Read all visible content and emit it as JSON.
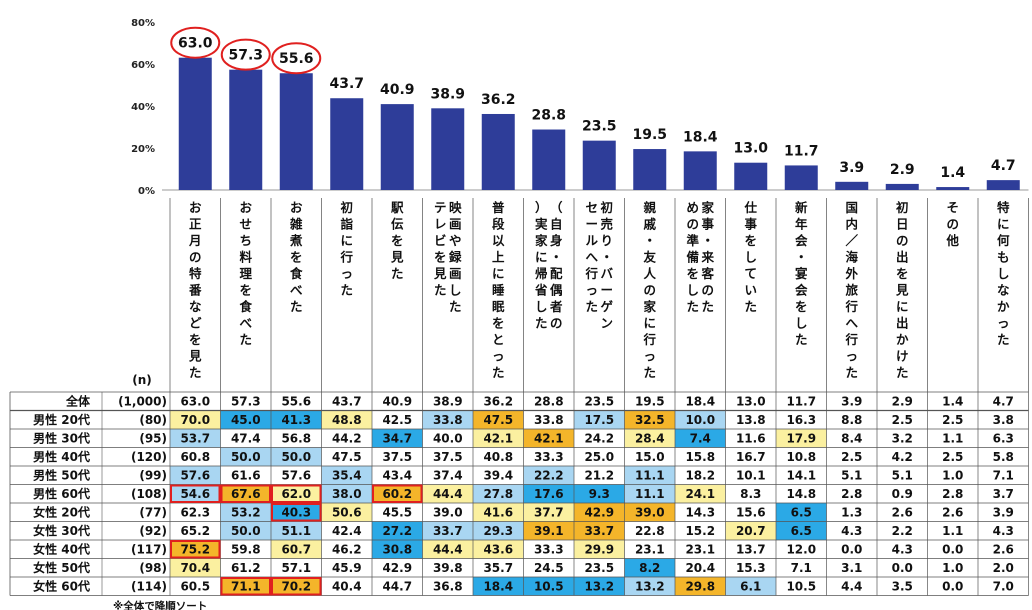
{
  "chart_data": {
    "type": "bar",
    "title": "",
    "ylim": [
      0,
      80
    ],
    "yticks": [
      "0%",
      "20%",
      "40%",
      "60%",
      "80%"
    ],
    "bar_color": "#2e3d99",
    "highlight_color": "#e0201f",
    "highlighted_categories": [
      0,
      1,
      2
    ],
    "categories": [
      "お正月の特番などを見た",
      "おせち料理を食べた",
      "お雑煮を食べた",
      "初詣に行った",
      "駅伝を見た",
      "映画や録画したテレビを見た",
      "普段以上に睡眠をとった",
      "（自身・配偶者の）実家に帰省した",
      "初売り・バーゲンセールへ行った",
      "親戚・友人の家に行った",
      "家事・来客のための準備をした",
      "仕事をしていた",
      "新年会・宴会をした",
      "国内／海外旅行へ行った",
      "初日の出を見に出かけた",
      "その他",
      "特に何もしなかった"
    ],
    "values": [
      63.0,
      57.3,
      55.6,
      43.7,
      40.9,
      38.9,
      36.2,
      28.8,
      23.5,
      19.5,
      18.4,
      13.0,
      11.7,
      3.9,
      2.9,
      1.4,
      4.7
    ],
    "value_labels": [
      "63.0",
      "57.3",
      "55.6",
      "43.7",
      "40.9",
      "38.9",
      "36.2",
      "28.8",
      "23.5",
      "19.5",
      "18.4",
      "13.0",
      "11.7",
      "3.9",
      "2.9",
      "1.4",
      "4.7"
    ],
    "table": {
      "n_header": "(n)",
      "rows": [
        {
          "label": "全体",
          "n": "(1,000)",
          "values": [
            "63.0",
            "57.3",
            "55.6",
            "43.7",
            "40.9",
            "38.9",
            "36.2",
            "28.8",
            "23.5",
            "19.5",
            "18.4",
            "13.0",
            "11.7",
            "3.9",
            "2.9",
            "1.4",
            "4.7"
          ],
          "shades": [
            0,
            0,
            0,
            0,
            0,
            0,
            0,
            0,
            0,
            0,
            0,
            0,
            0,
            0,
            0,
            0,
            0
          ],
          "boxed": []
        },
        {
          "label": "男性 20代",
          "n": "(80)",
          "values": [
            "70.0",
            "45.0",
            "41.3",
            "48.8",
            "42.5",
            "33.8",
            "47.5",
            "33.8",
            "17.5",
            "32.5",
            "10.0",
            "13.8",
            "16.3",
            "8.8",
            "2.5",
            "2.5",
            "3.8"
          ],
          "shades": [
            1,
            3,
            3,
            1,
            0,
            4,
            2,
            0,
            4,
            2,
            4,
            0,
            0,
            0,
            0,
            0,
            0
          ],
          "boxed": []
        },
        {
          "label": "男性 30代",
          "n": "(95)",
          "values": [
            "53.7",
            "47.4",
            "56.8",
            "44.2",
            "34.7",
            "40.0",
            "42.1",
            "42.1",
            "24.2",
            "28.4",
            "7.4",
            "11.6",
            "17.9",
            "8.4",
            "3.2",
            "1.1",
            "6.3"
          ],
          "shades": [
            4,
            0,
            0,
            0,
            3,
            0,
            1,
            2,
            0,
            1,
            3,
            0,
            1,
            0,
            0,
            0,
            0
          ],
          "boxed": []
        },
        {
          "label": "男性 40代",
          "n": "(120)",
          "values": [
            "60.8",
            "50.0",
            "50.0",
            "47.5",
            "37.5",
            "37.5",
            "40.8",
            "33.3",
            "25.0",
            "15.0",
            "15.8",
            "16.7",
            "10.8",
            "2.5",
            "4.2",
            "2.5",
            "5.8"
          ],
          "shades": [
            0,
            4,
            4,
            0,
            0,
            0,
            0,
            0,
            0,
            0,
            0,
            0,
            0,
            0,
            0,
            0,
            0
          ],
          "boxed": []
        },
        {
          "label": "男性 50代",
          "n": "(99)",
          "values": [
            "57.6",
            "61.6",
            "57.6",
            "35.4",
            "43.4",
            "37.4",
            "39.4",
            "22.2",
            "21.2",
            "11.1",
            "18.2",
            "10.1",
            "14.1",
            "5.1",
            "5.1",
            "1.0",
            "7.1"
          ],
          "shades": [
            4,
            0,
            0,
            4,
            0,
            0,
            0,
            4,
            0,
            4,
            0,
            0,
            0,
            0,
            0,
            0,
            0
          ],
          "boxed": []
        },
        {
          "label": "男性 60代",
          "n": "(108)",
          "values": [
            "54.6",
            "67.6",
            "62.0",
            "38.0",
            "60.2",
            "44.4",
            "27.8",
            "17.6",
            "9.3",
            "11.1",
            "24.1",
            "8.3",
            "14.8",
            "2.8",
            "0.9",
            "2.8",
            "3.7"
          ],
          "shades": [
            4,
            2,
            1,
            4,
            2,
            1,
            4,
            3,
            3,
            4,
            1,
            0,
            0,
            0,
            0,
            0,
            0
          ],
          "boxed": [
            0,
            1,
            2,
            4
          ]
        },
        {
          "label": "女性 20代",
          "n": "(77)",
          "values": [
            "62.3",
            "53.2",
            "40.3",
            "50.6",
            "45.5",
            "39.0",
            "41.6",
            "37.7",
            "42.9",
            "39.0",
            "14.3",
            "15.6",
            "6.5",
            "1.3",
            "2.6",
            "2.6",
            "3.9"
          ],
          "shades": [
            0,
            4,
            3,
            1,
            0,
            0,
            1,
            1,
            2,
            2,
            0,
            0,
            3,
            0,
            0,
            0,
            0
          ],
          "boxed": [
            2
          ]
        },
        {
          "label": "女性 30代",
          "n": "(92)",
          "values": [
            "65.2",
            "50.0",
            "51.1",
            "42.4",
            "27.2",
            "33.7",
            "29.3",
            "39.1",
            "33.7",
            "22.8",
            "15.2",
            "20.7",
            "6.5",
            "4.3",
            "2.2",
            "1.1",
            "4.3"
          ],
          "shades": [
            0,
            4,
            4,
            0,
            3,
            4,
            4,
            2,
            2,
            0,
            0,
            1,
            3,
            0,
            0,
            0,
            0
          ],
          "boxed": []
        },
        {
          "label": "女性 40代",
          "n": "(117)",
          "values": [
            "75.2",
            "59.8",
            "60.7",
            "46.2",
            "30.8",
            "44.4",
            "43.6",
            "33.3",
            "29.9",
            "23.1",
            "23.1",
            "13.7",
            "12.0",
            "0.0",
            "4.3",
            "0.0",
            "2.6"
          ],
          "shades": [
            2,
            0,
            1,
            0,
            3,
            1,
            1,
            0,
            1,
            0,
            0,
            0,
            0,
            0,
            0,
            0,
            0
          ],
          "boxed": [
            0
          ]
        },
        {
          "label": "女性 50代",
          "n": "(98)",
          "values": [
            "70.4",
            "61.2",
            "57.1",
            "45.9",
            "42.9",
            "39.8",
            "35.7",
            "24.5",
            "23.5",
            "8.2",
            "20.4",
            "15.3",
            "7.1",
            "3.1",
            "0.0",
            "1.0",
            "2.0"
          ],
          "shades": [
            1,
            0,
            0,
            0,
            0,
            0,
            0,
            0,
            0,
            3,
            0,
            0,
            0,
            0,
            0,
            0,
            0
          ],
          "boxed": []
        },
        {
          "label": "女性 60代",
          "n": "(114)",
          "values": [
            "60.5",
            "71.1",
            "70.2",
            "40.4",
            "44.7",
            "36.8",
            "18.4",
            "10.5",
            "13.2",
            "13.2",
            "29.8",
            "6.1",
            "10.5",
            "4.4",
            "3.5",
            "0.0",
            "7.0"
          ],
          "shades": [
            0,
            2,
            2,
            0,
            0,
            0,
            3,
            3,
            3,
            4,
            2,
            4,
            0,
            0,
            0,
            0,
            0
          ],
          "boxed": [
            1,
            2
          ]
        }
      ],
      "shade_colors": [
        "#ffffff",
        "#fbf0a0",
        "#f4b52a",
        "#2ba9e6",
        "#a9d6f2"
      ],
      "boxed_color": "#e0201f"
    },
    "note": "※全体で降順ソート"
  }
}
